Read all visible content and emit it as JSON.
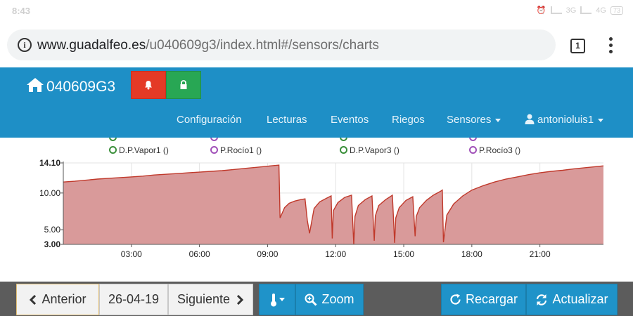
{
  "status_bar": {
    "time": "8:43",
    "network_1": "3G",
    "network_2": "4G",
    "battery": "73"
  },
  "browser": {
    "url_host": "www.guadalfeo.es",
    "url_path": "/u040609g3/index.html#/sensors/charts",
    "tab_count": "1"
  },
  "header": {
    "device_id": "040609G3",
    "nav": {
      "configuracion": "Configuración",
      "lecturas": "Lecturas",
      "eventos": "Eventos",
      "riegos": "Riegos",
      "sensores": "Sensores",
      "user": "antonioluis1"
    }
  },
  "legend": [
    {
      "label": "D.P.Vapor1 ()",
      "color": "#3a8f3a"
    },
    {
      "label": "P.Rocío1 ()",
      "color": "#a050b8"
    },
    {
      "label": "D.P.Vapor3 ()",
      "color": "#3a8f3a"
    },
    {
      "label": "P.Rocío3 ()",
      "color": "#a050b8"
    }
  ],
  "chart_data": {
    "type": "area",
    "xlabel": "",
    "ylabel": "",
    "y_ticks": [
      "14.10",
      "10.00",
      "5.00",
      "3.00"
    ],
    "y_tick_values": [
      14.1,
      10,
      5,
      3
    ],
    "ylim": [
      3,
      14.1
    ],
    "x_ticks": [
      "03:00",
      "06:00",
      "09:00",
      "12:00",
      "15:00",
      "18:00",
      "21:00"
    ],
    "x_tick_hours": [
      3,
      6,
      9,
      12,
      15,
      18,
      21
    ],
    "xlim_hours": [
      0,
      23.8
    ],
    "grid": true,
    "fill_color": "#d99a9a",
    "line_color": "#c0392b",
    "series": [
      {
        "x": [
          0,
          0.5,
          1,
          1.5,
          2,
          2.5,
          3,
          3.5,
          4,
          4.5,
          5,
          5.5,
          6,
          6.5,
          7,
          7.5,
          8,
          8.5,
          9,
          9.5,
          9.55,
          9.75,
          9.95,
          10.2,
          10.45,
          10.65,
          10.75,
          10.85,
          11.05,
          11.3,
          11.6,
          11.8,
          11.85,
          11.9,
          12.1,
          12.4,
          12.7,
          12.8,
          12.85,
          13.0,
          13.3,
          13.6,
          13.7,
          13.75,
          13.9,
          14.2,
          14.5,
          14.6,
          14.65,
          14.8,
          15.1,
          15.4,
          15.5,
          15.55,
          15.7,
          16.0,
          16.3,
          16.6,
          16.7,
          16.75,
          16.9,
          17.2,
          17.6,
          18.0,
          18.5,
          19.0,
          19.5,
          20.0,
          20.5,
          21.0,
          21.5,
          22.0,
          22.5,
          23.0,
          23.5,
          23.8
        ],
        "y": [
          11.5,
          11.6,
          11.75,
          11.9,
          12.0,
          12.1,
          12.2,
          12.3,
          12.45,
          12.55,
          12.65,
          12.75,
          12.85,
          12.95,
          13.05,
          13.2,
          13.35,
          13.5,
          13.65,
          13.8,
          6.6,
          8.0,
          8.6,
          8.9,
          9.1,
          9.2,
          6.3,
          4.5,
          7.9,
          8.8,
          9.3,
          9.6,
          3.8,
          7.6,
          8.7,
          9.4,
          9.7,
          3.0,
          6.8,
          8.3,
          9.1,
          9.6,
          3.5,
          6.9,
          8.3,
          9.1,
          9.7,
          3.2,
          6.6,
          8.0,
          9.0,
          9.5,
          4.1,
          6.8,
          8.0,
          9.0,
          9.7,
          10.2,
          10.4,
          3.3,
          7.0,
          8.5,
          9.6,
          10.4,
          11.0,
          11.5,
          11.9,
          12.2,
          12.5,
          12.75,
          12.95,
          13.1,
          13.3,
          13.45,
          13.6,
          13.7
        ]
      }
    ]
  },
  "toolbar": {
    "prev_label": "Anterior",
    "date": "26-04-19",
    "next_label": "Siguiente",
    "zoom_label": "Zoom",
    "reload_label": "Recargar",
    "update_label": "Actualizar"
  }
}
